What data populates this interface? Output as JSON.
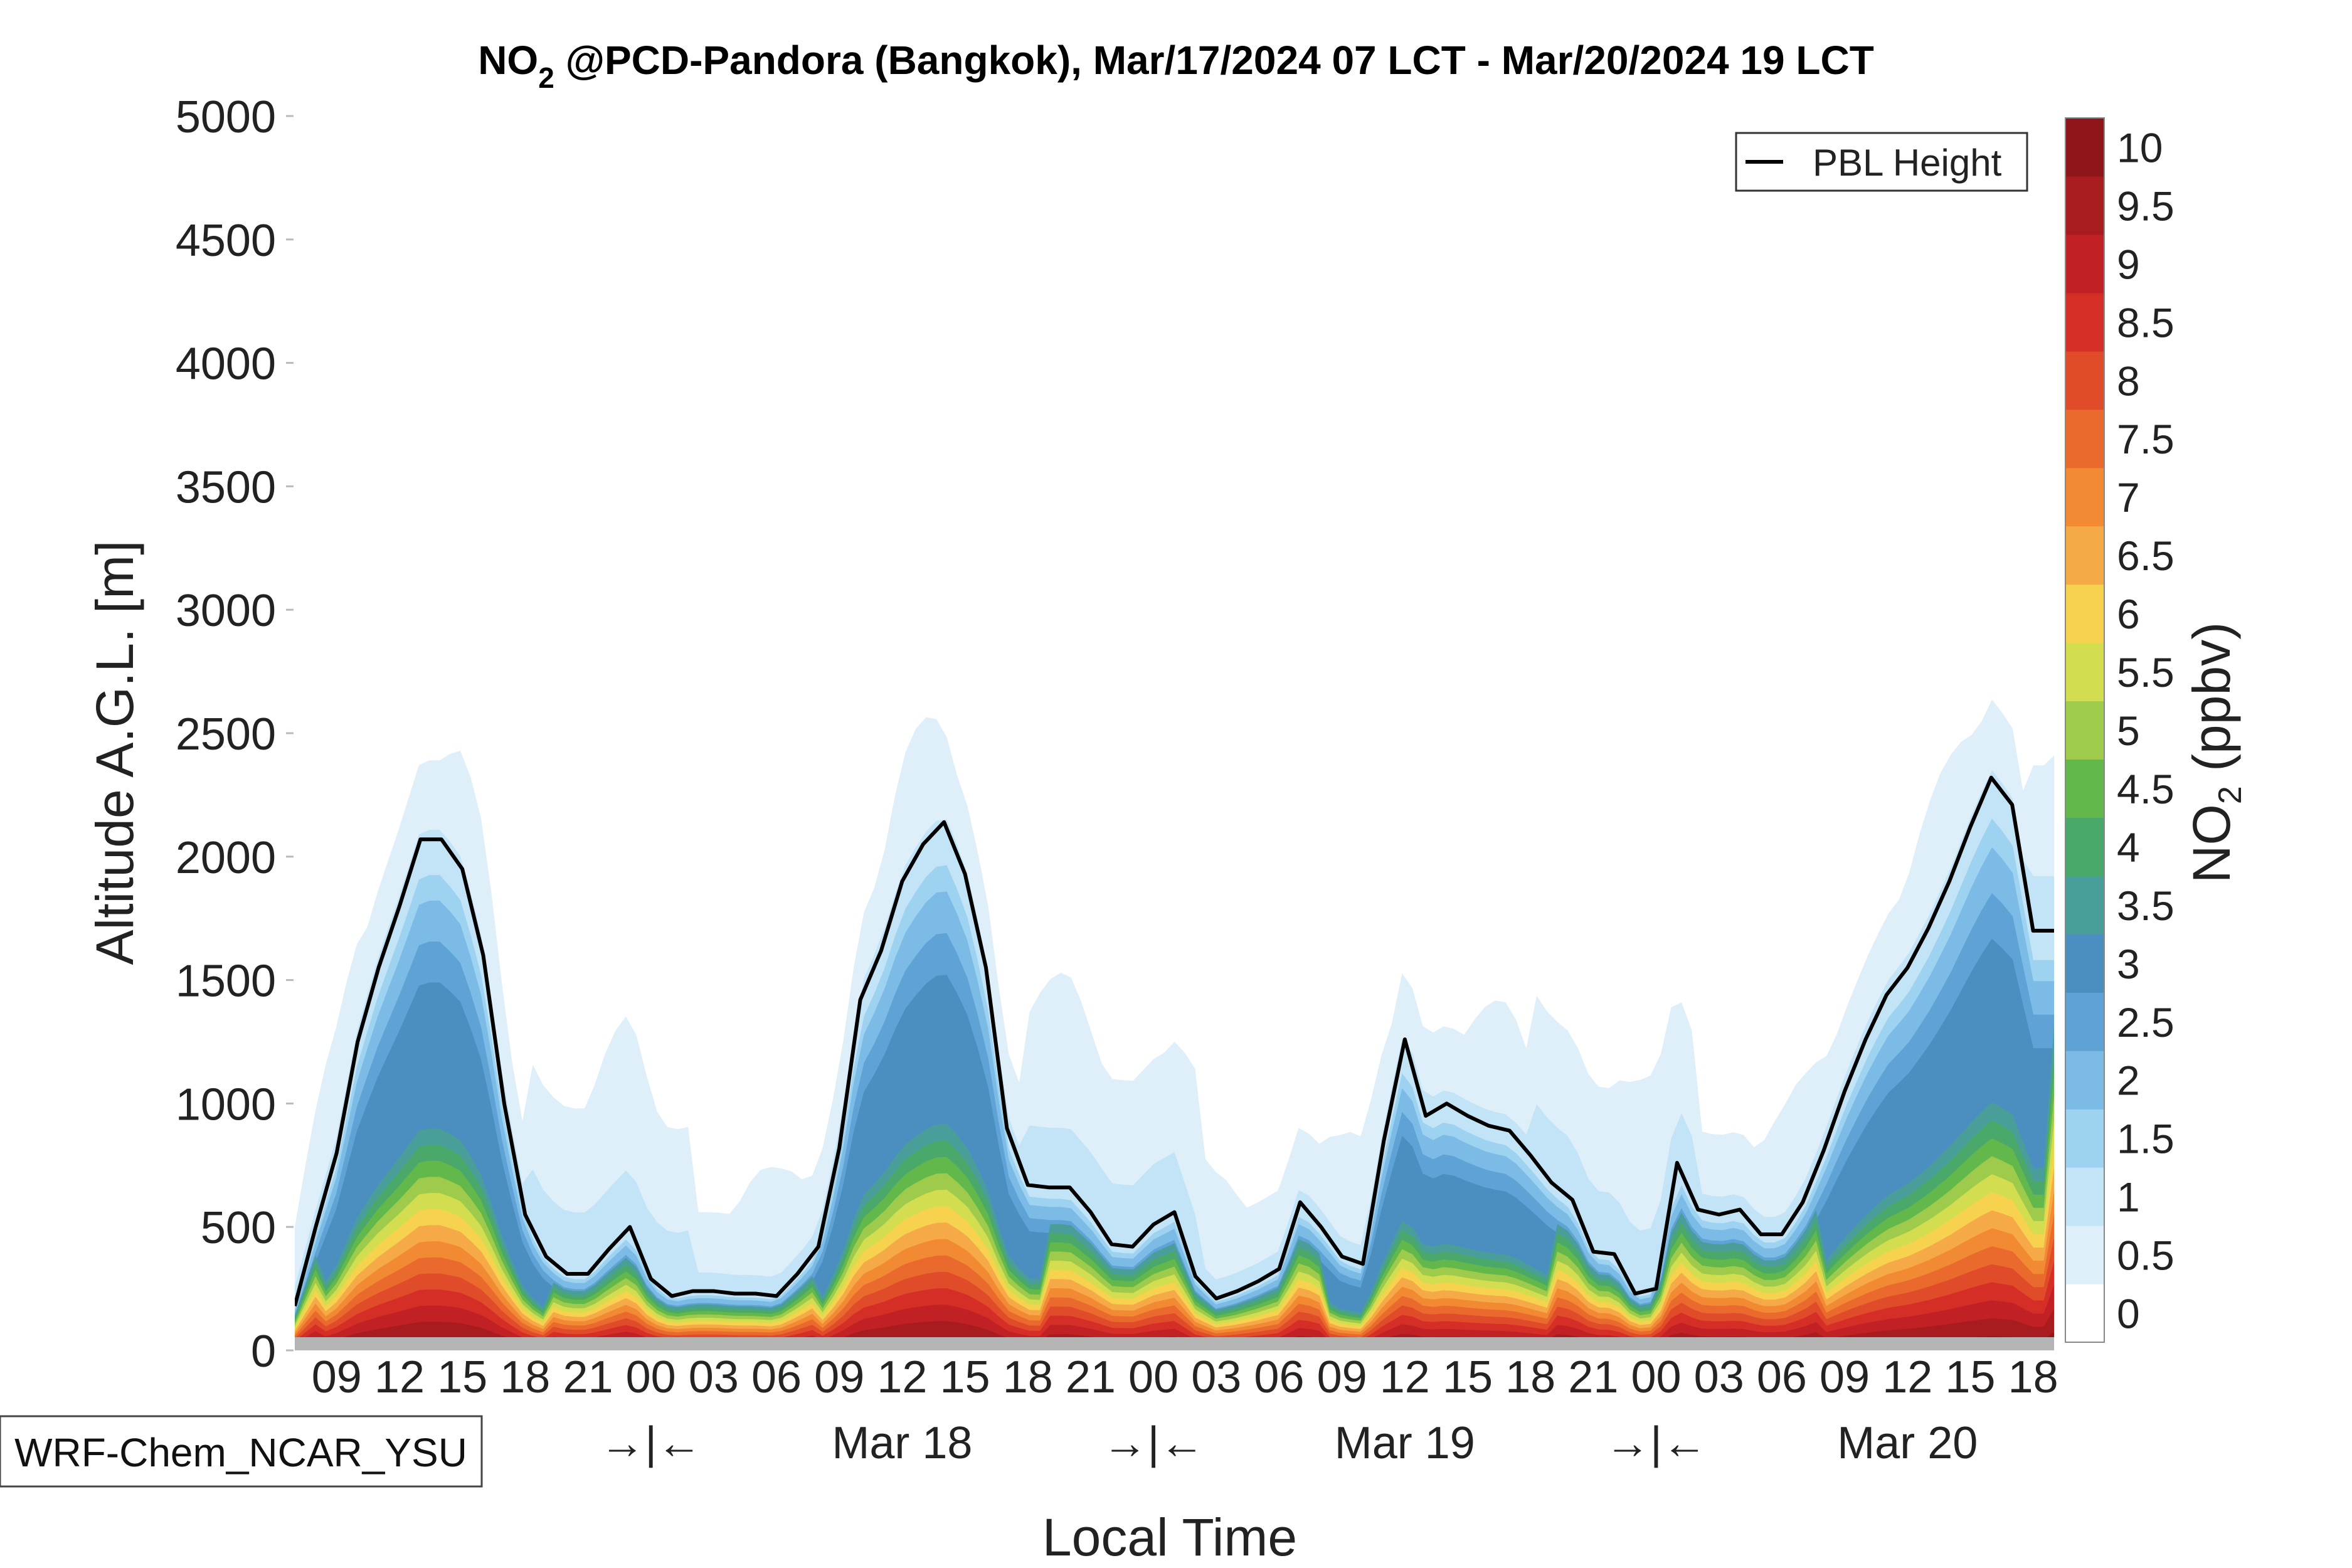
{
  "chart_data": {
    "type": "contour",
    "title_main": "NO",
    "title_sub": "2",
    "title_rest": " @PCD-Pandora (Bangkok), Mar/17/2024 07 LCT - Mar/20/2024 19 LCT",
    "ylabel": "Altitude A.G.L. [m]",
    "xlabel": "Local Time",
    "ylim": [
      0,
      5000
    ],
    "y_ticks": [
      0,
      500,
      1000,
      1500,
      2000,
      2500,
      3000,
      3500,
      4000,
      4500,
      5000
    ],
    "x_range_hours": [
      0,
      84
    ],
    "x_tick_labels": [
      {
        "t": 2,
        "label": "09"
      },
      {
        "t": 5,
        "label": "12"
      },
      {
        "t": 8,
        "label": "15"
      },
      {
        "t": 11,
        "label": "18"
      },
      {
        "t": 14,
        "label": "21"
      },
      {
        "t": 17,
        "label": "00"
      },
      {
        "t": 20,
        "label": "03"
      },
      {
        "t": 23,
        "label": "06"
      },
      {
        "t": 26,
        "label": "09"
      },
      {
        "t": 29,
        "label": "12"
      },
      {
        "t": 32,
        "label": "15"
      },
      {
        "t": 35,
        "label": "18"
      },
      {
        "t": 38,
        "label": "21"
      },
      {
        "t": 41,
        "label": "00"
      },
      {
        "t": 44,
        "label": "03"
      },
      {
        "t": 47,
        "label": "06"
      },
      {
        "t": 50,
        "label": "09"
      },
      {
        "t": 53,
        "label": "12"
      },
      {
        "t": 56,
        "label": "15"
      },
      {
        "t": 59,
        "label": "18"
      },
      {
        "t": 62,
        "label": "21"
      },
      {
        "t": 65,
        "label": "00"
      },
      {
        "t": 68,
        "label": "03"
      },
      {
        "t": 71,
        "label": "06"
      },
      {
        "t": 74,
        "label": "09"
      },
      {
        "t": 77,
        "label": "12"
      },
      {
        "t": 80,
        "label": "15"
      },
      {
        "t": 83,
        "label": "18"
      }
    ],
    "day_markers": [
      {
        "t": 17,
        "label": "→|←"
      },
      {
        "t": 29,
        "label": "Mar 18"
      },
      {
        "t": 41,
        "label": "→|←"
      },
      {
        "t": 53,
        "label": "Mar 19"
      },
      {
        "t": 65,
        "label": "→|←"
      },
      {
        "t": 77,
        "label": "Mar 20"
      }
    ],
    "colorbar": {
      "label_main": "NO",
      "label_sub": "2",
      "label_rest": " (ppbv)",
      "levels": [
        0,
        0.5,
        1,
        1.5,
        2,
        2.5,
        3,
        3.5,
        4,
        4.5,
        5,
        5.5,
        6,
        6.5,
        7,
        7.5,
        8,
        8.5,
        9,
        9.5,
        10
      ],
      "tick_labels": [
        "0",
        "0.5",
        "1",
        "1.5",
        "2",
        "2.5",
        "3",
        "3.5",
        "4",
        "4.5",
        "5",
        "5.5",
        "6",
        "6.5",
        "7",
        "7.5",
        "8",
        "8.5",
        "9",
        "9.5",
        "10"
      ],
      "colors": [
        "#ffffff",
        "#deeff9",
        "#c3e4f6",
        "#9dd2f0",
        "#7cbbe5",
        "#5fa2d6",
        "#4b8fc0",
        "#4a9e9a",
        "#4aa86a",
        "#62b84b",
        "#9fcb4c",
        "#d2de4f",
        "#f6d24f",
        "#f5aa47",
        "#f28a34",
        "#ea6a2e",
        "#e04b2a",
        "#d42e26",
        "#c12024",
        "#a81b1f",
        "#8e1519"
      ]
    },
    "pbl_height": {
      "name": "PBL Height",
      "t": [
        0,
        1,
        2,
        3,
        4,
        5,
        6,
        7,
        8,
        9,
        10,
        11,
        12,
        13,
        14,
        15,
        16,
        17,
        18,
        19,
        20,
        21,
        22,
        23,
        24,
        25,
        26,
        27,
        28,
        29,
        30,
        31,
        32,
        33,
        34,
        35,
        36,
        37,
        38,
        39,
        40,
        41,
        42,
        43,
        44,
        45,
        46,
        47,
        48,
        49,
        50,
        51,
        52,
        53,
        54,
        55,
        56,
        57,
        58,
        59,
        60,
        61,
        62,
        63,
        64,
        65,
        66,
        67,
        68,
        69,
        70,
        71,
        72,
        73,
        74,
        75,
        76,
        77,
        78,
        79,
        80,
        81,
        82,
        83,
        84
      ],
      "h": [
        180,
        500,
        800,
        1250,
        1550,
        1800,
        2070,
        2070,
        1950,
        1600,
        1000,
        550,
        380,
        310,
        310,
        410,
        500,
        290,
        220,
        240,
        240,
        230,
        230,
        220,
        310,
        420,
        820,
        1420,
        1620,
        1900,
        2050,
        2140,
        1930,
        1550,
        900,
        670,
        660,
        660,
        560,
        430,
        420,
        510,
        560,
        300,
        210,
        240,
        280,
        330,
        600,
        500,
        380,
        350,
        850,
        1260,
        950,
        1000,
        950,
        910,
        890,
        790,
        680,
        610,
        400,
        390,
        230,
        250,
        760,
        570,
        550,
        570,
        470,
        470,
        600,
        810,
        1050,
        1260,
        1440,
        1550,
        1710,
        1900,
        2120,
        2320,
        2210,
        1700,
        1700
      ],
      "line_color": "#000000"
    },
    "model_label": "WRF-Chem_NCAR_YSU",
    "ground_band_color": "#b4b4b4"
  }
}
